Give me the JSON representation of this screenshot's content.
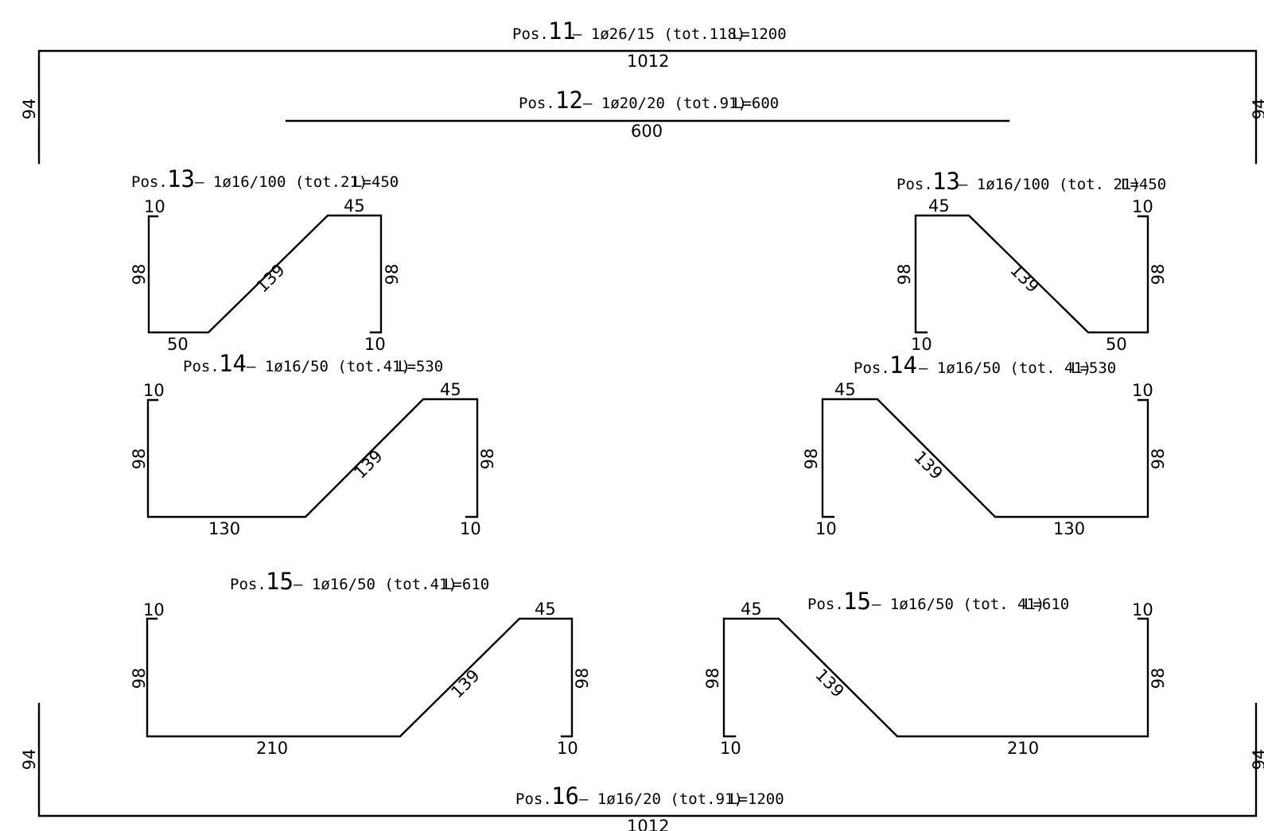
{
  "bars": {
    "p11": {
      "pos_word": "Pos.",
      "pos_num": "11",
      "spec": "– 1ø26/15 (tot.118)",
      "length": "L=1200",
      "top": "1012",
      "leg_left": "94",
      "leg_right": "94"
    },
    "p12": {
      "pos_word": "Pos.",
      "pos_num": "12",
      "spec": "– 1ø20/20 (tot.91)",
      "length": "L=600",
      "bottom": "600"
    },
    "p13a": {
      "pos_word": "Pos.",
      "pos_num": "13",
      "spec": "– 1ø16/100 (tot.21)",
      "length": "L=450",
      "hook_top": "10",
      "top": "45",
      "left": "98",
      "diagonal": "139",
      "right": "98",
      "bottom": "50",
      "hook_bottom": "10"
    },
    "p13b": {
      "pos_word": "Pos.",
      "pos_num": "13",
      "spec": "– 1ø16/100 (tot. 21)",
      "length": "L=450",
      "top": "45",
      "hook_top": "10",
      "left": "98",
      "diagonal": "139",
      "right": "98",
      "hook_bottom": "10",
      "bottom": "50"
    },
    "p14a": {
      "pos_word": "Pos.",
      "pos_num": "14",
      "spec": "– 1ø16/50 (tot.41)",
      "length": "L=530",
      "hook_top": "10",
      "top": "45",
      "left": "98",
      "diagonal": "139",
      "right": "98",
      "bottom": "130",
      "hook_bottom": "10"
    },
    "p14b": {
      "pos_word": "Pos.",
      "pos_num": "14",
      "spec": "– 1ø16/50 (tot. 41)",
      "length": "L=530",
      "top": "45",
      "hook_top": "10",
      "left": "98",
      "diagonal": "139",
      "right": "98",
      "hook_bottom": "10",
      "bottom": "130"
    },
    "p15a": {
      "pos_word": "Pos.",
      "pos_num": "15",
      "spec": "– 1ø16/50 (tot.41)",
      "length": "L=610",
      "hook_top": "10",
      "top": "45",
      "left": "98",
      "diagonal": "139",
      "right": "98",
      "bottom": "210",
      "hook_bottom": "10"
    },
    "p15b": {
      "pos_word": "Pos.",
      "pos_num": "15",
      "spec": "– 1ø16/50 (tot. 41)",
      "length": "L=610",
      "top": "45",
      "hook_top": "10",
      "left": "98",
      "diagonal": "139",
      "right": "98",
      "hook_bottom": "10",
      "bottom": "210"
    },
    "p16": {
      "pos_word": "Pos.",
      "pos_num": "16",
      "spec": "– 1ø16/20 (tot.91)",
      "length": "L=1200",
      "bottom": "1012",
      "leg_left": "94",
      "leg_right": "94"
    }
  }
}
